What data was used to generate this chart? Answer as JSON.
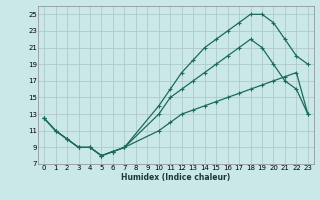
{
  "xlabel": "Humidex (Indice chaleur)",
  "background_color": "#cbe8e8",
  "grid_color": "#b0c8c8",
  "line_color": "#1a6b5a",
  "xlim": [
    -0.5,
    23.5
  ],
  "ylim": [
    7,
    26
  ],
  "xticks": [
    0,
    1,
    2,
    3,
    4,
    5,
    6,
    7,
    8,
    9,
    10,
    11,
    12,
    13,
    14,
    15,
    16,
    17,
    18,
    19,
    20,
    21,
    22,
    23
  ],
  "yticks": [
    7,
    9,
    11,
    13,
    15,
    17,
    19,
    21,
    23,
    25
  ],
  "line1_x": [
    0,
    1,
    2,
    3,
    4,
    5,
    6,
    7,
    10,
    11,
    12,
    13,
    14,
    15,
    16,
    17,
    18,
    19,
    20,
    21,
    22,
    23
  ],
  "line1_y": [
    12.5,
    11,
    10,
    9,
    9,
    8,
    8.5,
    9,
    11,
    12,
    13,
    13.5,
    14,
    14.5,
    15,
    15.5,
    16,
    16.5,
    17,
    17.5,
    18,
    13
  ],
  "line2_x": [
    0,
    1,
    2,
    3,
    4,
    5,
    6,
    7,
    10,
    11,
    12,
    13,
    14,
    15,
    16,
    17,
    18,
    19,
    20,
    21,
    22,
    23
  ],
  "line2_y": [
    12.5,
    11,
    10,
    9,
    9,
    8,
    8.5,
    9,
    14,
    16,
    18,
    19.5,
    21,
    22,
    23,
    24,
    25,
    25,
    24,
    22,
    20,
    19
  ],
  "line3_x": [
    0,
    1,
    2,
    3,
    4,
    5,
    6,
    7,
    10,
    11,
    12,
    13,
    14,
    15,
    16,
    17,
    18,
    19,
    20,
    21,
    22,
    23
  ],
  "line3_y": [
    12.5,
    11,
    10,
    9,
    9,
    8,
    8.5,
    9,
    13,
    15,
    16,
    17,
    18,
    19,
    20,
    21,
    22,
    21,
    19,
    17,
    16,
    13
  ]
}
